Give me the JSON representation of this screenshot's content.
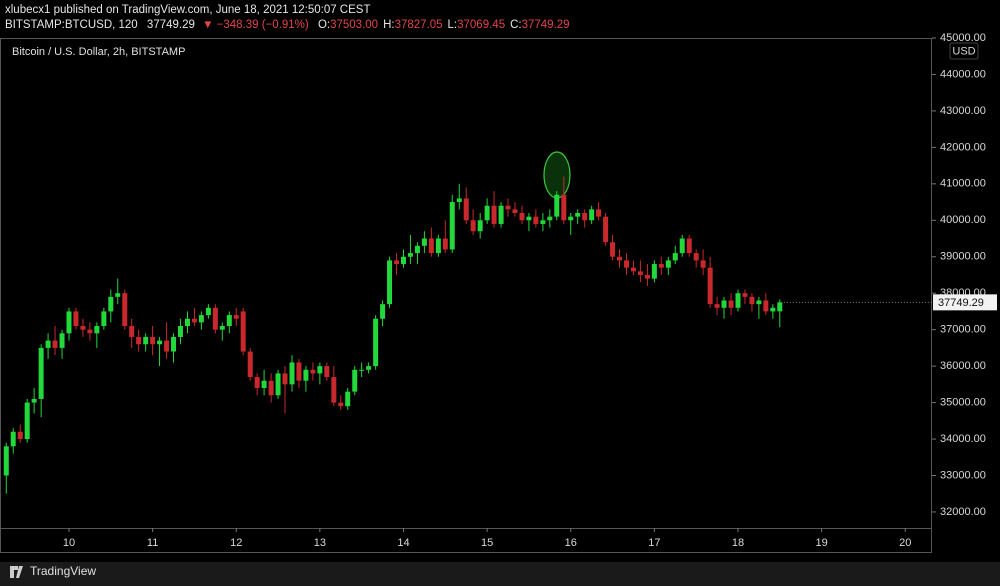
{
  "header": {
    "published": "xlubecx1 published on TradingView.com, June 18, 2021 12:50:07 CEST",
    "symbol": "BITSTAMP:BTCUSD, 120",
    "last": "37749.29",
    "change": "▼ −348.39 (−0.91%)",
    "ohlc": [
      {
        "label": "O:",
        "value": "37503.00"
      },
      {
        "label": "H:",
        "value": "37827.05"
      },
      {
        "label": "L:",
        "value": "37069.45"
      },
      {
        "label": "C:",
        "value": "37749.29"
      }
    ]
  },
  "footer": {
    "brand": "TradingView"
  },
  "chart_data": {
    "type": "candlestick",
    "title": "Bitcoin / U.S. Dollar, 2h, BITSTAMP",
    "y_unit": "USD",
    "up_color": "#22d83a",
    "down_color": "#c9282d",
    "grid": false,
    "x": [
      9.25,
      9.333,
      9.417,
      9.5,
      9.583,
      9.667,
      9.75,
      9.833,
      9.917,
      10,
      10.083,
      10.167,
      10.25,
      10.333,
      10.417,
      10.5,
      10.583,
      10.667,
      10.75,
      10.833,
      10.917,
      11,
      11.083,
      11.167,
      11.25,
      11.333,
      11.417,
      11.5,
      11.583,
      11.667,
      11.75,
      11.833,
      11.917,
      12,
      12.083,
      12.167,
      12.25,
      12.333,
      12.417,
      12.5,
      12.583,
      12.667,
      12.75,
      12.833,
      12.917,
      13,
      13.083,
      13.167,
      13.25,
      13.333,
      13.417,
      13.5,
      13.583,
      13.667,
      13.75,
      13.833,
      13.917,
      14,
      14.083,
      14.167,
      14.25,
      14.333,
      14.417,
      14.5,
      14.583,
      14.667,
      14.75,
      14.833,
      14.917,
      15,
      15.083,
      15.167,
      15.25,
      15.333,
      15.417,
      15.5,
      15.583,
      15.667,
      15.75,
      15.833,
      15.917,
      16,
      16.083,
      16.167,
      16.25,
      16.333,
      16.417,
      16.5,
      16.583,
      16.667,
      16.75,
      16.833,
      16.917,
      17,
      17.083,
      17.167,
      17.25,
      17.333,
      17.417,
      17.5,
      17.583,
      17.667,
      17.75,
      17.833,
      17.917,
      18,
      18.083,
      18.167,
      18.25,
      18.333,
      18.417,
      18.5
    ],
    "open": [
      33000,
      33800,
      34200,
      34000,
      35000,
      35100,
      36500,
      36700,
      36500,
      36900,
      37500,
      37100,
      37000,
      36900,
      37100,
      37500,
      37900,
      38000,
      37100,
      36800,
      36600,
      36800,
      36600,
      36700,
      36400,
      36800,
      37100,
      37300,
      37200,
      37400,
      37600,
      37000,
      37100,
      37400,
      37500,
      36400,
      35700,
      35400,
      35600,
      35200,
      35800,
      35500,
      36100,
      35600,
      35900,
      35800,
      36000,
      35700,
      35000,
      34900,
      35300,
      35900,
      35900,
      36000,
      37300,
      37700,
      38900,
      38800,
      39000,
      39100,
      39300,
      39500,
      39100,
      39500,
      39200,
      40500,
      40600,
      40000,
      39700,
      40000,
      40400,
      39900,
      40400,
      40300,
      40200,
      40000,
      40100,
      39900,
      40000,
      40100,
      40700,
      40000,
      40100,
      40200,
      40000,
      40300,
      40100,
      39400,
      39000,
      38900,
      38700,
      38600,
      38500,
      38400,
      38800,
      38700,
      38900,
      39100,
      39500,
      39100,
      38900,
      38700,
      37700,
      37600,
      37800,
      37600,
      38000,
      37900,
      37700,
      37800,
      37500,
      37503
    ],
    "high": [
      33900,
      34300,
      34400,
      35100,
      35400,
      36600,
      36900,
      37100,
      37000,
      37600,
      37600,
      37300,
      37200,
      37200,
      37600,
      38100,
      38400,
      38100,
      37300,
      37000,
      36900,
      37100,
      36800,
      37200,
      36900,
      37300,
      37500,
      37600,
      37500,
      37700,
      37700,
      37200,
      37500,
      37600,
      37600,
      36500,
      35800,
      35900,
      35800,
      35900,
      36000,
      36300,
      36200,
      36000,
      36100,
      36100,
      36100,
      36000,
      35200,
      35400,
      36000,
      36100,
      36100,
      37400,
      37800,
      39000,
      39100,
      39200,
      39600,
      39400,
      39700,
      39800,
      39600,
      40000,
      40700,
      41000,
      40900,
      40300,
      40200,
      40600,
      40800,
      40500,
      40600,
      40500,
      40400,
      40200,
      40300,
      40200,
      40300,
      40800,
      41200,
      40200,
      40300,
      40300,
      40400,
      40500,
      40200,
      39600,
      39200,
      39100,
      38900,
      38900,
      38800,
      38900,
      39000,
      39000,
      39300,
      39600,
      39600,
      39200,
      39200,
      39000,
      37900,
      37900,
      38000,
      38100,
      38100,
      38000,
      37900,
      38000,
      37700,
      37827.05
    ],
    "low": [
      32500,
      33600,
      33900,
      33900,
      34700,
      34600,
      36200,
      36300,
      36200,
      36700,
      37000,
      36800,
      36700,
      36500,
      37000,
      37200,
      37700,
      37000,
      36500,
      36400,
      36400,
      36300,
      36000,
      36200,
      36100,
      36600,
      36900,
      37100,
      37000,
      37300,
      36900,
      36700,
      36900,
      37100,
      36300,
      35600,
      35200,
      35200,
      35000,
      35100,
      34700,
      35300,
      35400,
      35300,
      35600,
      35500,
      35600,
      34900,
      34800,
      34800,
      35200,
      35700,
      35800,
      35900,
      37100,
      37600,
      38500,
      38700,
      38800,
      38800,
      39100,
      39000,
      39000,
      39100,
      39100,
      40300,
      39900,
      39600,
      39500,
      39900,
      39800,
      39800,
      40100,
      40100,
      39900,
      39700,
      39800,
      39700,
      39800,
      40000,
      39900,
      39600,
      39900,
      39800,
      39900,
      40000,
      39300,
      38900,
      38700,
      38500,
      38500,
      38300,
      38200,
      38300,
      38500,
      38500,
      38800,
      39000,
      39000,
      38700,
      38500,
      37600,
      37400,
      37300,
      37400,
      37500,
      37700,
      37500,
      37300,
      37400,
      37300,
      37069.45
    ],
    "close": [
      33800,
      34200,
      34000,
      35000,
      35100,
      36500,
      36700,
      36500,
      36900,
      37500,
      37100,
      37000,
      36900,
      37100,
      37500,
      37900,
      38000,
      37100,
      36800,
      36600,
      36800,
      36600,
      36700,
      36400,
      36800,
      37100,
      37300,
      37200,
      37400,
      37600,
      37000,
      37100,
      37400,
      37300,
      36400,
      35700,
      35400,
      35600,
      35200,
      35800,
      35500,
      36100,
      35600,
      35900,
      35800,
      36000,
      35700,
      35000,
      34900,
      35300,
      35900,
      35900,
      36000,
      37300,
      37700,
      38900,
      38800,
      39000,
      39100,
      39300,
      39500,
      39100,
      39500,
      39200,
      40500,
      40600,
      40000,
      39700,
      40000,
      40400,
      39900,
      40400,
      40300,
      40200,
      40000,
      40100,
      39900,
      40000,
      40100,
      40700,
      40000,
      40100,
      40200,
      40000,
      40300,
      40100,
      39400,
      39000,
      38900,
      38700,
      38600,
      38500,
      38400,
      38800,
      38700,
      38900,
      39100,
      39500,
      39100,
      38900,
      38700,
      37700,
      37600,
      37800,
      37600,
      38000,
      37900,
      37700,
      37800,
      37500,
      37600,
      37749.29
    ],
    "xlim": [
      9.175,
      20.32
    ],
    "xticks": [
      10,
      11,
      12,
      13,
      14,
      15,
      16,
      17,
      18,
      19,
      20
    ],
    "ylim": [
      31560,
      45000
    ],
    "yticks": [
      {
        "value": 32000,
        "label": "32000.00"
      },
      {
        "value": 33000,
        "label": "33000.00"
      },
      {
        "value": 34000,
        "label": "34000.00"
      },
      {
        "value": 35000,
        "label": "35000.00"
      },
      {
        "value": 36000,
        "label": "36000.00"
      },
      {
        "value": 37000,
        "label": "37000.00"
      },
      {
        "value": 38000,
        "label": "38000.00"
      },
      {
        "value": 39000,
        "label": "39000.00"
      },
      {
        "value": 40000,
        "label": "40000.00"
      },
      {
        "value": 41000,
        "label": "41000.00"
      },
      {
        "value": 42000,
        "label": "42000.00"
      },
      {
        "value": 43000,
        "label": "43000.00"
      },
      {
        "value": 44000,
        "label": "44000.00"
      },
      {
        "value": 45000,
        "label": "45000.00"
      }
    ]
  }
}
